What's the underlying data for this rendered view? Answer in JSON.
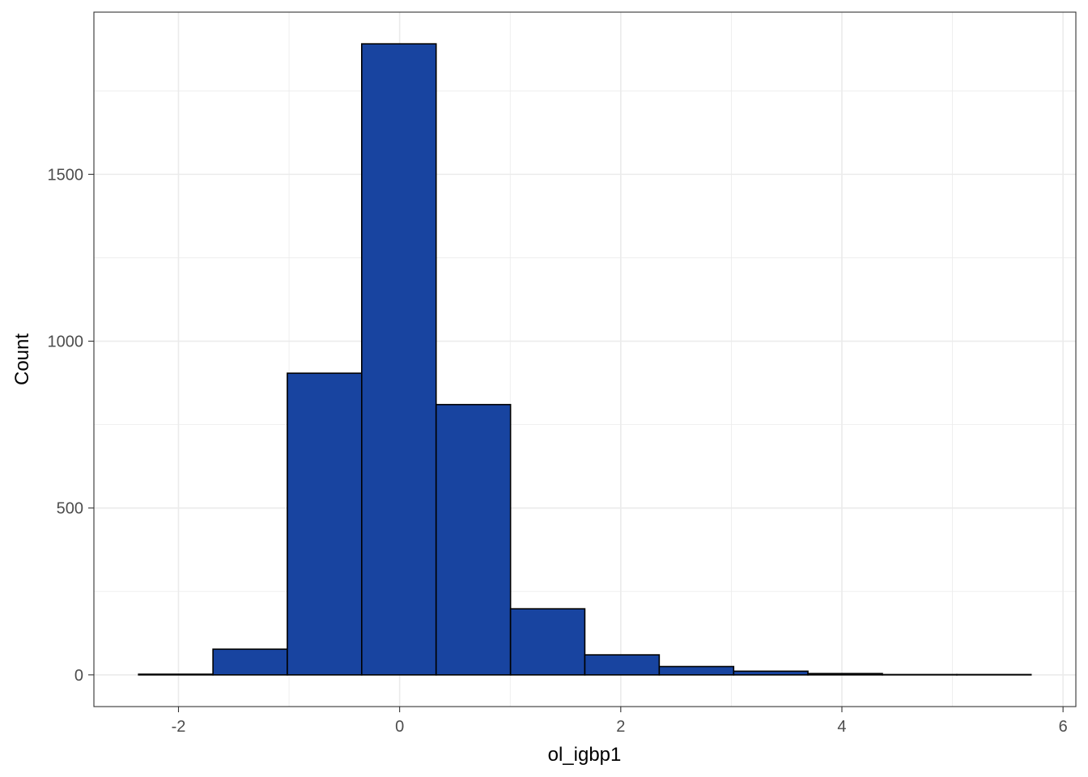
{
  "chart_data": {
    "type": "bar",
    "subtype": "histogram",
    "title": "",
    "xlabel": "ol_igbp1",
    "ylabel": "Count",
    "bin_width": 0.6727,
    "bin_start": -2.361,
    "bins": [
      {
        "x0": -2.361,
        "x1": -1.688,
        "count": 2
      },
      {
        "x0": -1.688,
        "x1": -1.016,
        "count": 77
      },
      {
        "x0": -1.016,
        "x1": -0.343,
        "count": 904
      },
      {
        "x0": -0.343,
        "x1": 0.33,
        "count": 1891
      },
      {
        "x0": 0.33,
        "x1": 1.003,
        "count": 810
      },
      {
        "x0": 1.003,
        "x1": 1.675,
        "count": 198
      },
      {
        "x0": 1.675,
        "x1": 2.348,
        "count": 60
      },
      {
        "x0": 2.348,
        "x1": 3.021,
        "count": 25
      },
      {
        "x0": 3.021,
        "x1": 3.693,
        "count": 11
      },
      {
        "x0": 3.693,
        "x1": 4.366,
        "count": 4
      },
      {
        "x0": 4.366,
        "x1": 5.039,
        "count": 1
      },
      {
        "x0": 5.039,
        "x1": 5.711,
        "count": 1
      }
    ],
    "xlim": [
      -2.765,
      6.116
    ],
    "ylim": [
      -95,
      1986
    ],
    "x_ticks": [
      -2,
      0,
      2,
      4,
      6
    ],
    "x_tick_labels": [
      "-2",
      "0",
      "2",
      "4",
      "6"
    ],
    "x_minor_ticks": [
      -1,
      1,
      3,
      5
    ],
    "y_ticks": [
      0,
      500,
      1000,
      1500
    ],
    "y_tick_labels": [
      "0",
      "500",
      "1000",
      "1500"
    ],
    "y_minor_ticks": [
      250,
      750,
      1250,
      1750
    ],
    "grid": true,
    "legend": "none",
    "colors": {
      "bar_fill": "#1844a0",
      "bar_outline": "#000000",
      "grid": "#ebebeb",
      "panel_border": "#333333",
      "tick_text": "#4d4d4d"
    }
  }
}
